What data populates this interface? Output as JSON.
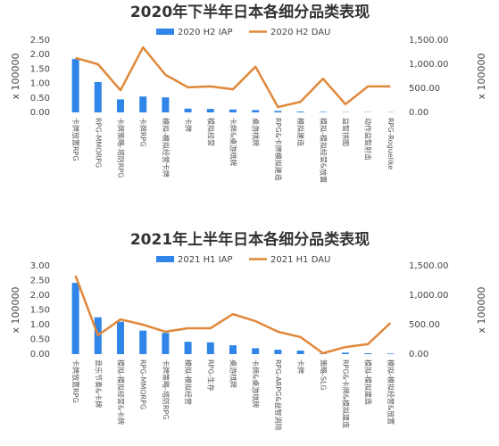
{
  "chart_data": [
    {
      "type": "combo",
      "title": "2020年下半年日本各细分品类表现",
      "categories": [
        "卡牌放置RPG",
        "RPG-MMORPG",
        "卡牌策略-塔防RPG",
        "卡牌RPG",
        "模拟-模拟经营卡牌",
        "卡牌",
        "模拟经营",
        "卡牌&桌游棋牌",
        "桌游棋牌",
        "RPG&卡牌模拟建造",
        "模拟建造",
        "模拟-模拟经营&放置",
        "益智拼图",
        "动作益智射击",
        "RPG-Roguelike"
      ],
      "series": [
        {
          "name": "2020 H2 IAP",
          "type": "bar",
          "color": "#2f86e8",
          "values": [
            1.85,
            1.05,
            0.45,
            0.55,
            0.52,
            0.13,
            0.12,
            0.1,
            0.08,
            0.05,
            0.03,
            0.02,
            0.01,
            0.01,
            0.01
          ]
        },
        {
          "name": "2020 H2 DAU",
          "type": "line",
          "axis": "y2",
          "color": "#e0883a",
          "values": [
            1130,
            1000,
            460,
            1350,
            780,
            520,
            540,
            480,
            950,
            110,
            220,
            700,
            170,
            540,
            540
          ]
        }
      ],
      "ylabel": "x 100000",
      "y2label": "x 100000",
      "ylim": [
        0,
        2.5
      ],
      "yticks": [
        {
          "value": 0,
          "label": "0.00"
        },
        {
          "value": 0.5,
          "label": "0.50"
        },
        {
          "value": 1,
          "label": "1.00"
        },
        {
          "value": 1.5,
          "label": "1.50"
        },
        {
          "value": 2,
          "label": "2.00"
        },
        {
          "value": 2.5,
          "label": "2.50"
        }
      ],
      "y2lim": [
        0,
        1500
      ],
      "y2ticks": [
        {
          "value": 0,
          "label": "0.00"
        },
        {
          "value": 500,
          "label": "500.00"
        },
        {
          "value": 1000,
          "label": "1,000.00"
        },
        {
          "value": 1500,
          "label": "1,500.00"
        }
      ]
    },
    {
      "type": "combo",
      "title": "2021年上半年日本各细分品类表现",
      "categories": [
        "卡牌放置RPG",
        "音乐节奏&卡牌",
        "模拟-模拟经营&卡牌",
        "RPG-MMORPG",
        "卡牌策略-塔防RPG",
        "模拟-模拟经营",
        "RPG-生存",
        "桌游棋牌",
        "卡牌&桌游棋牌",
        "RPG-ARPG&益智消除",
        "卡牌",
        "策略-SLG",
        "RPG&卡牌&模拟建造",
        "模拟-模拟建造",
        "模拟-模拟经营&放置"
      ],
      "series": [
        {
          "name": "2021 H1 IAP",
          "type": "bar",
          "color": "#2f86e8",
          "values": [
            2.42,
            1.25,
            1.1,
            0.8,
            0.72,
            0.42,
            0.4,
            0.3,
            0.2,
            0.15,
            0.12,
            0.02,
            0.05,
            0.03,
            0.02
          ]
        },
        {
          "name": "2021 H1 DAU",
          "type": "line",
          "axis": "y2",
          "color": "#e0883a",
          "values": [
            1330,
            320,
            590,
            500,
            380,
            440,
            440,
            680,
            560,
            380,
            290,
            15,
            120,
            170,
            530
          ]
        }
      ],
      "ylabel": "x 100000",
      "y2label": "x 100000",
      "ylim": [
        0,
        3
      ],
      "yticks": [
        {
          "value": 0,
          "label": "0.00"
        },
        {
          "value": 0.5,
          "label": "0.50"
        },
        {
          "value": 1,
          "label": "1.00"
        },
        {
          "value": 1.5,
          "label": "1.50"
        },
        {
          "value": 2,
          "label": "2.00"
        },
        {
          "value": 2.5,
          "label": "2.50"
        },
        {
          "value": 3,
          "label": "3.00"
        }
      ],
      "y2lim": [
        0,
        1500
      ],
      "y2ticks": [
        {
          "value": 0,
          "label": "0.00"
        },
        {
          "value": 500,
          "label": "500.00"
        },
        {
          "value": 1000,
          "label": "1,000.00"
        },
        {
          "value": 1500,
          "label": "1,500.00"
        }
      ]
    }
  ]
}
